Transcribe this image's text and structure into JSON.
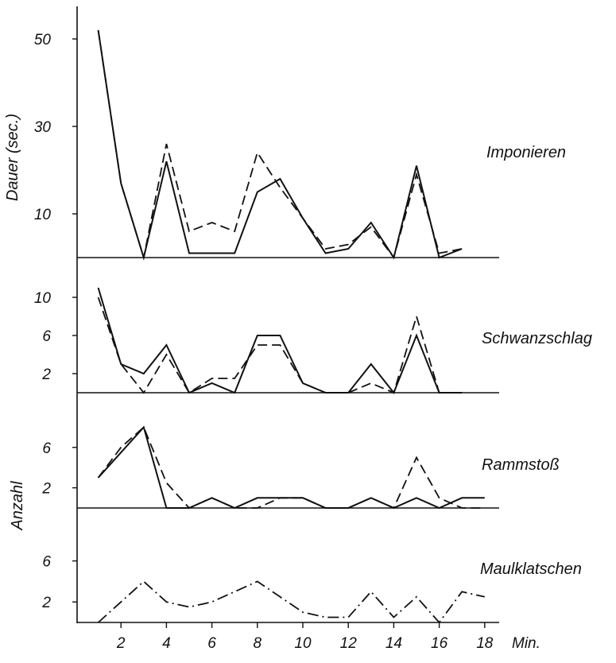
{
  "chart_data": {
    "type": "line",
    "x_axis": {
      "ticks": [
        2,
        4,
        6,
        8,
        10,
        12,
        14,
        16,
        18
      ],
      "unit_label": "Min.",
      "range": [
        0,
        19
      ]
    },
    "y_label_top": "Dauer (sec.)",
    "y_label_bottom": "Anzahl",
    "panels": [
      {
        "label": "Imponieren",
        "ylim": [
          0,
          58
        ],
        "yticks": [
          10,
          30,
          50
        ],
        "series": [
          {
            "style": "solid",
            "x": [
              1,
              2,
              3,
              4,
              5,
              6,
              7,
              8,
              9,
              10,
              11,
              12,
              13,
              14,
              15,
              16,
              17
            ],
            "y": [
              52,
              17,
              0,
              22,
              1,
              1,
              1,
              15,
              18,
              9,
              1,
              2,
              8,
              0,
              21,
              0,
              2
            ]
          },
          {
            "style": "dashed",
            "x": [
              1,
              2,
              3,
              4,
              5,
              6,
              7,
              8,
              9,
              10,
              11,
              12,
              13,
              14,
              15,
              16,
              17
            ],
            "y": [
              52,
              17,
              0,
              26,
              6,
              8,
              6,
              24,
              16,
              9,
              2,
              3,
              7,
              0,
              19,
              1,
              2
            ]
          }
        ]
      },
      {
        "label": "Schwanzschlag",
        "ylim": [
          0,
          13
        ],
        "yticks": [
          2,
          6,
          10
        ],
        "series": [
          {
            "style": "solid",
            "x": [
              1,
              2,
              3,
              4,
              5,
              6,
              7,
              8,
              9,
              10,
              11,
              12,
              13,
              14,
              15,
              16,
              17
            ],
            "y": [
              11,
              3,
              2,
              5,
              0,
              1,
              0,
              6,
              6,
              1,
              0,
              0,
              3,
              0,
              6,
              0,
              0
            ]
          },
          {
            "style": "dashed",
            "x": [
              1,
              2,
              3,
              4,
              5,
              6,
              7,
              8,
              9,
              10,
              11,
              12,
              13,
              14,
              15,
              16,
              17
            ],
            "y": [
              10,
              3,
              0,
              4,
              0,
              1.5,
              1.5,
              5,
              5,
              1,
              0,
              0,
              1,
              0,
              8,
              0,
              0
            ]
          }
        ]
      },
      {
        "label": "Rammstoß",
        "ylim": [
          0,
          10
        ],
        "yticks": [
          2,
          6
        ],
        "series": [
          {
            "style": "solid",
            "x": [
              1,
              3,
              4,
              5,
              6,
              7,
              8,
              9,
              10,
              11,
              12,
              13,
              14,
              15,
              16,
              17,
              18
            ],
            "y": [
              3,
              8,
              0,
              0,
              1,
              0,
              1,
              1,
              1,
              0,
              0,
              1,
              0,
              1,
              0,
              1,
              1
            ]
          },
          {
            "style": "dashed",
            "x": [
              1,
              2,
              3,
              4,
              5,
              6,
              7,
              8,
              9,
              10,
              11,
              12,
              13,
              14,
              15,
              16,
              17,
              18
            ],
            "y": [
              3,
              6,
              8,
              2.5,
              0,
              1,
              0,
              0,
              1,
              1,
              0,
              0,
              1,
              0,
              5,
              1,
              0,
              0
            ]
          }
        ]
      },
      {
        "label": "Maulklatschen",
        "ylim": [
          0,
          10
        ],
        "yticks": [
          2,
          6
        ],
        "series": [
          {
            "style": "dashdot",
            "x": [
              1,
              2,
              3,
              4,
              5,
              6,
              7,
              8,
              9,
              10,
              11,
              12,
              13,
              14,
              15,
              16,
              17,
              18
            ],
            "y": [
              0,
              2,
              4,
              2,
              1.5,
              2,
              3,
              4,
              2.5,
              1,
              0.5,
              0.5,
              3,
              0.5,
              2.5,
              0,
              3,
              2.5
            ]
          }
        ]
      }
    ],
    "grid": false,
    "legend": "none"
  }
}
